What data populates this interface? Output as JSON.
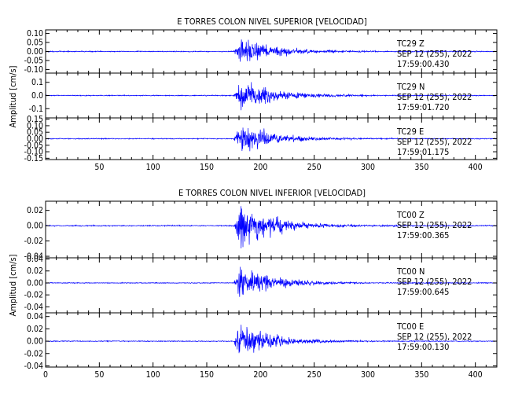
{
  "chart_data": [
    {
      "type": "line",
      "title": "E TORRES COLON NIVEL SUPERIOR [VELOCIDAD]",
      "ylabel": "Amplitud [cm/s]",
      "xlim": [
        0,
        420
      ],
      "x_ticks": [
        50,
        100,
        150,
        200,
        250,
        300,
        350,
        400
      ],
      "line_color": "#0000ff",
      "signal": {
        "onset": 175,
        "peak": 182,
        "decay": 30
      },
      "series": [
        {
          "station": "TC29",
          "component": "Z",
          "date": "SEP 12 (255), 2022",
          "time": "17:59:00.430",
          "ylim": [
            -0.12,
            0.12
          ],
          "peak_amplitude": 0.08,
          "noise": 0.003,
          "y_ticks": [
            0.1,
            0.05,
            0.0,
            -0.05,
            -0.1
          ],
          "y_tick_labels": [
            "0.10",
            "0.05",
            "0.00",
            "-0.05",
            "-0.10"
          ]
        },
        {
          "station": "TC29",
          "component": "N",
          "date": "SEP 12 (255), 2022",
          "time": "17:59:01.720",
          "ylim": [
            -0.17,
            0.17
          ],
          "peak_amplitude": 0.12,
          "noise": 0.004,
          "y_ticks": [
            0.1,
            0.0,
            -0.1
          ],
          "y_tick_labels": [
            "0.1",
            "0.0",
            "-0.1"
          ]
        },
        {
          "station": "TC29",
          "component": "E",
          "date": "SEP 12 (255), 2022",
          "time": "17:59:01.175",
          "ylim": [
            -0.16,
            0.16
          ],
          "peak_amplitude": 0.12,
          "noise": 0.004,
          "y_ticks": [
            0.15,
            0.1,
            0.05,
            0.0,
            -0.05,
            -0.1,
            -0.15
          ],
          "y_tick_labels": [
            "0.15",
            "0.10",
            "0.05",
            "0.00",
            "-0.05",
            "-0.10",
            "-0.15"
          ]
        }
      ]
    },
    {
      "type": "line",
      "title": "E TORRES COLON NIVEL INFERIOR [VELOCIDAD]",
      "ylabel": "Amplitud [cm/s]",
      "xlim": [
        0,
        420
      ],
      "x_ticks": [
        0,
        50,
        100,
        150,
        200,
        250,
        300,
        350,
        400
      ],
      "line_color": "#0000ff",
      "signal": {
        "onset": 175,
        "peak": 181,
        "decay": 28
      },
      "series": [
        {
          "station": "TC00",
          "component": "Z",
          "date": "SEP 12 (255), 2022",
          "time": "17:59:00.365",
          "ylim": [
            -0.042,
            0.032
          ],
          "peak_amplitude": 0.035,
          "noise": 0.0008,
          "y_ticks": [
            0.02,
            0.0,
            -0.02,
            -0.04
          ],
          "y_tick_labels": [
            "0.02",
            "0.00",
            "-0.02",
            "-0.04"
          ]
        },
        {
          "station": "TC00",
          "component": "N",
          "date": "SEP 12 (255), 2022",
          "time": "17:59:00.645",
          "ylim": [
            -0.05,
            0.042
          ],
          "peak_amplitude": 0.03,
          "noise": 0.0008,
          "y_ticks": [
            0.04,
            0.02,
            0.0,
            -0.02,
            -0.04
          ],
          "y_tick_labels": [
            "0.04",
            "0.02",
            "0.00",
            "-0.02",
            "-0.04"
          ]
        },
        {
          "station": "TC00",
          "component": "E",
          "date": "SEP 12 (255), 2022",
          "time": "17:59:00.130",
          "ylim": [
            -0.042,
            0.046
          ],
          "peak_amplitude": 0.032,
          "noise": 0.0008,
          "y_ticks": [
            0.04,
            0.02,
            0.0,
            -0.02,
            -0.04
          ],
          "y_tick_labels": [
            "0.04",
            "0.02",
            "0.00",
            "-0.02",
            "-0.04"
          ]
        }
      ]
    }
  ]
}
